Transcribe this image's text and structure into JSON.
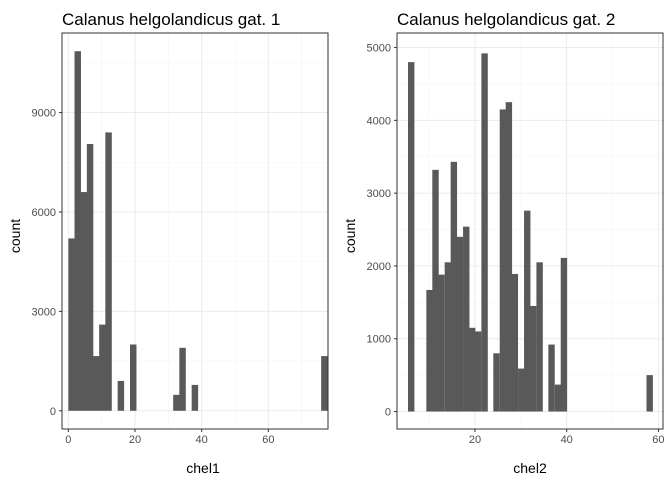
{
  "chart_data": [
    {
      "type": "bar",
      "title": "Calanus helgolandicus gat. 1",
      "xlabel": "chel1",
      "ylabel": "count",
      "xlim": [
        -1.9,
        77.9
      ],
      "ylim": [
        -550,
        11400
      ],
      "xticks": [
        0,
        20,
        40,
        60
      ],
      "yticks": [
        0,
        3000,
        6000,
        9000
      ],
      "bin_width": 1.85,
      "bar_color": "#595959",
      "bins": [
        {
          "x": 0.0,
          "count": 5200
        },
        {
          "x": 1.85,
          "count": 10850
        },
        {
          "x": 3.7,
          "count": 6600
        },
        {
          "x": 5.55,
          "count": 8050
        },
        {
          "x": 7.4,
          "count": 1650
        },
        {
          "x": 9.25,
          "count": 2600
        },
        {
          "x": 11.1,
          "count": 8400
        },
        {
          "x": 14.8,
          "count": 900
        },
        {
          "x": 18.5,
          "count": 2000
        },
        {
          "x": 31.45,
          "count": 480
        },
        {
          "x": 33.3,
          "count": 1900
        },
        {
          "x": 37.0,
          "count": 780
        },
        {
          "x": 75.85,
          "count": 1650
        }
      ]
    },
    {
      "type": "bar",
      "title": "Calanus helgolandicus gat. 2",
      "xlabel": "chel2",
      "ylabel": "count",
      "xlim": [
        3.0,
        61.0
      ],
      "ylim": [
        -240,
        5200
      ],
      "xticks": [
        20,
        40,
        60
      ],
      "yticks": [
        0,
        1000,
        2000,
        3000,
        4000,
        5000
      ],
      "bin_width": 1.33,
      "bar_color": "#595959",
      "bins": [
        {
          "x": 5.4,
          "count": 4800
        },
        {
          "x": 9.4,
          "count": 1670
        },
        {
          "x": 10.7,
          "count": 3320
        },
        {
          "x": 12.0,
          "count": 1880
        },
        {
          "x": 13.4,
          "count": 2050
        },
        {
          "x": 14.7,
          "count": 3430
        },
        {
          "x": 16.0,
          "count": 2400
        },
        {
          "x": 17.4,
          "count": 2540
        },
        {
          "x": 18.7,
          "count": 1150
        },
        {
          "x": 20.0,
          "count": 1100
        },
        {
          "x": 21.4,
          "count": 4920
        },
        {
          "x": 24.0,
          "count": 800
        },
        {
          "x": 25.4,
          "count": 4150
        },
        {
          "x": 26.7,
          "count": 4250
        },
        {
          "x": 28.0,
          "count": 1890
        },
        {
          "x": 29.4,
          "count": 590
        },
        {
          "x": 30.7,
          "count": 2760
        },
        {
          "x": 32.0,
          "count": 1450
        },
        {
          "x": 33.4,
          "count": 2050
        },
        {
          "x": 36.0,
          "count": 920
        },
        {
          "x": 37.4,
          "count": 370
        },
        {
          "x": 38.7,
          "count": 2110
        },
        {
          "x": 57.4,
          "count": 500
        }
      ]
    }
  ]
}
